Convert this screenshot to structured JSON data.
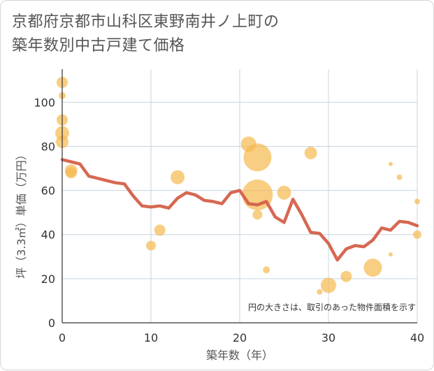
{
  "chart_data": {
    "type": "scatter",
    "title_lines": [
      "京都府京都市山科区東野南井ノ上町の",
      "築年数別中古戸建て価格"
    ],
    "xlabel": "築年数（年）",
    "ylabel": "坪（3.3㎡）単価（万円）",
    "xlim": [
      0,
      40
    ],
    "ylim": [
      0,
      115
    ],
    "x_ticks": [
      0,
      10,
      20,
      30,
      40
    ],
    "y_ticks": [
      0,
      20,
      40,
      60,
      80,
      100
    ],
    "note": "円の大きさは、取引のあった物件面積を示す",
    "colors": {
      "bubble": "#f5b94e",
      "line": "#d4604a",
      "grid": "#c8d4e0",
      "axis": "#333333"
    },
    "bubbles": [
      {
        "x": 0,
        "y": 109,
        "size": 8
      },
      {
        "x": 0,
        "y": 103,
        "size": 5
      },
      {
        "x": 0,
        "y": 92,
        "size": 8
      },
      {
        "x": 0,
        "y": 86,
        "size": 10
      },
      {
        "x": 0,
        "y": 82,
        "size": 9
      },
      {
        "x": 1,
        "y": 69,
        "size": 9
      },
      {
        "x": 1,
        "y": 68,
        "size": 8
      },
      {
        "x": 10,
        "y": 35,
        "size": 7
      },
      {
        "x": 11,
        "y": 42,
        "size": 8
      },
      {
        "x": 13,
        "y": 66,
        "size": 10
      },
      {
        "x": 21,
        "y": 81,
        "size": 11
      },
      {
        "x": 22,
        "y": 75,
        "size": 20
      },
      {
        "x": 22,
        "y": 58,
        "size": 22
      },
      {
        "x": 22,
        "y": 49,
        "size": 7
      },
      {
        "x": 23,
        "y": 24,
        "size": 5
      },
      {
        "x": 25,
        "y": 59,
        "size": 10
      },
      {
        "x": 28,
        "y": 77,
        "size": 9
      },
      {
        "x": 29,
        "y": 14,
        "size": 4
      },
      {
        "x": 30,
        "y": 17,
        "size": 11
      },
      {
        "x": 32,
        "y": 21,
        "size": 8
      },
      {
        "x": 35,
        "y": 25,
        "size": 13
      },
      {
        "x": 37,
        "y": 72,
        "size": 3
      },
      {
        "x": 37,
        "y": 31,
        "size": 3
      },
      {
        "x": 38,
        "y": 66,
        "size": 4
      },
      {
        "x": 40,
        "y": 55,
        "size": 4
      },
      {
        "x": 40,
        "y": 40,
        "size": 6
      }
    ],
    "trend_line": {
      "x": [
        0,
        1,
        2,
        3,
        4,
        5,
        6,
        7,
        8,
        9,
        10,
        11,
        12,
        13,
        14,
        15,
        16,
        17,
        18,
        19,
        20,
        21,
        22,
        23,
        24,
        25,
        26,
        27,
        28,
        29,
        30,
        31,
        32,
        33,
        34,
        35,
        36,
        37,
        38,
        39,
        40
      ],
      "y": [
        74,
        73,
        72,
        66.5,
        65.5,
        64.5,
        63.5,
        63,
        57.5,
        53,
        52.5,
        53,
        52,
        56.5,
        59,
        58,
        55.5,
        55,
        54,
        59,
        60,
        54,
        53.5,
        55,
        48,
        45.5,
        56,
        49,
        41,
        40.5,
        36,
        28.5,
        33.5,
        35,
        34.5,
        37.5,
        43,
        42,
        46,
        45.5,
        44
      ]
    }
  }
}
